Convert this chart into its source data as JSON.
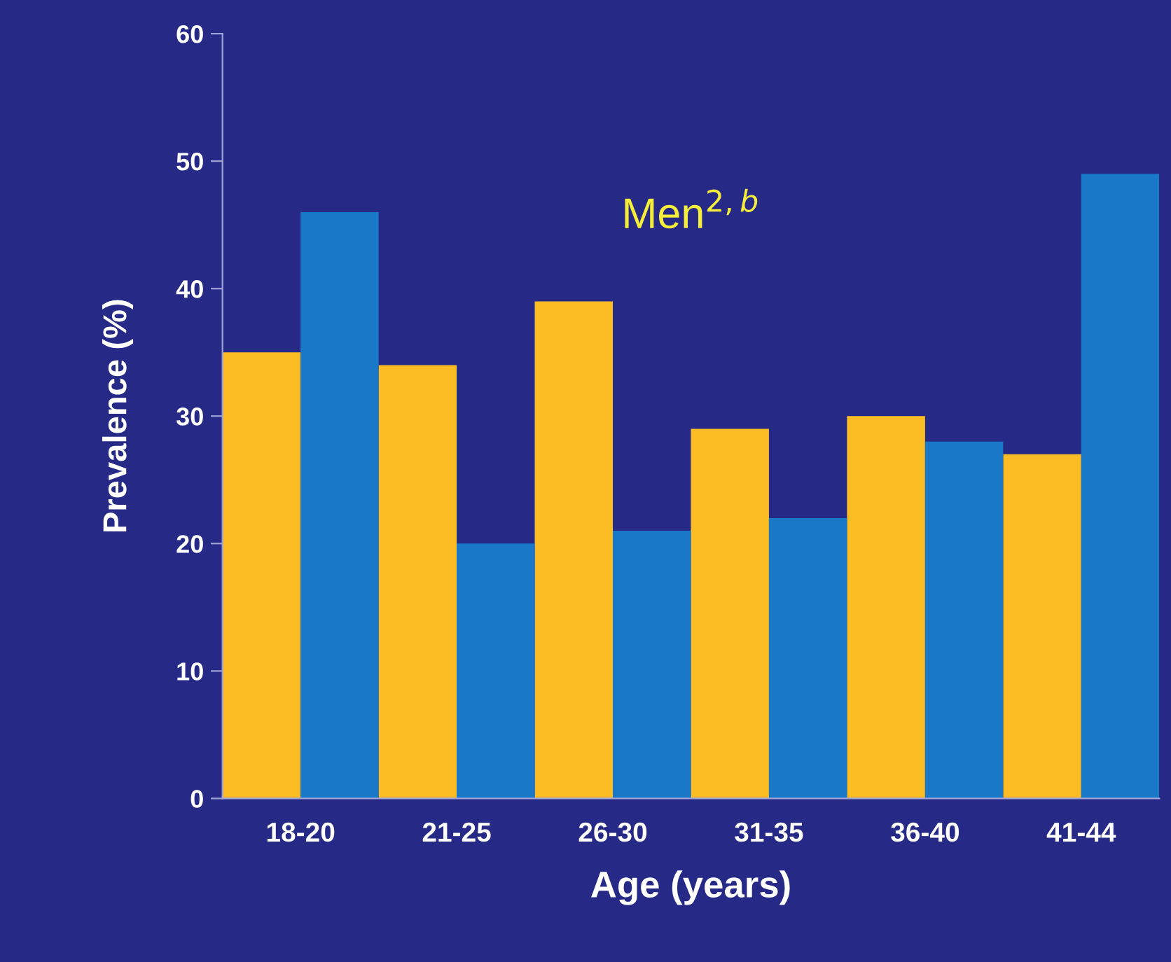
{
  "chart_data": {
    "type": "bar",
    "xlabel": "Age (years)",
    "ylabel": "Prevalence (%)",
    "annotations": [
      "Men$^{2,b}$"
    ],
    "categories": [
      "18-20",
      "21-25",
      "26-30",
      "31-35",
      "36-40",
      "41-44"
    ],
    "series": [
      {
        "color": "#fbbc24",
        "values": [
          35,
          34,
          39,
          29,
          30,
          27
        ]
      },
      {
        "color": "#1a78c8",
        "values": [
          46,
          20,
          21,
          22,
          28,
          49
        ]
      }
    ],
    "ylim": [
      0,
      60
    ],
    "yticks": [
      0,
      10,
      20,
      30,
      40,
      50,
      60
    ],
    "grid": false,
    "legend": false
  }
}
